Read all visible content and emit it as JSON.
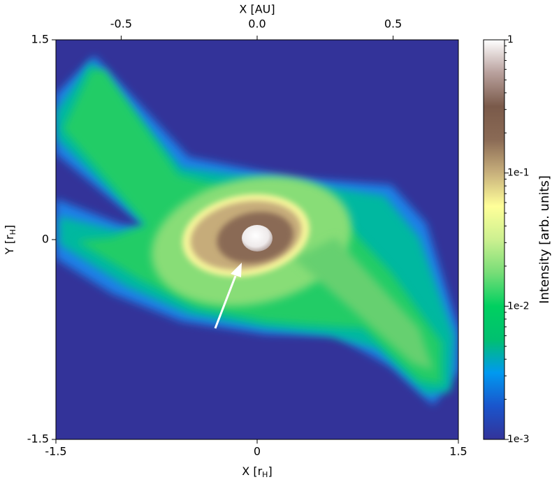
{
  "chart_data": {
    "type": "image",
    "xlabel": [
      "X [r",
      "H",
      "]"
    ],
    "ylabel": [
      "Y [r",
      "H",
      "]"
    ],
    "x2label": "X [AU]",
    "xlim": [
      -1.5,
      1.5
    ],
    "xticks": [
      -1.5,
      0,
      1.5
    ],
    "ylim": [
      -1.5,
      1.5
    ],
    "yticks": [
      -1.5,
      0,
      1.5
    ],
    "x2lim": [
      -0.74,
      0.74
    ],
    "x2ticks": [
      -0.5,
      {
        "value": 0,
        "label": "0.0"
      },
      0.5
    ],
    "colorbar": {
      "label": "Intensity [arb. units]",
      "log": true,
      "clim": [
        0.001,
        1
      ],
      "ticks": [
        {
          "value": 0.001,
          "label": "1e-3"
        },
        {
          "value": 0.01,
          "label": "1e-2"
        },
        {
          "value": 0.1,
          "label": "1e-1"
        },
        1
      ],
      "colormap": [
        "#333399",
        "#1a55cc",
        "#0099f0",
        "#00c070",
        "#00d060",
        "#77dd77",
        "#ccf090",
        "#ffff99",
        "#c8b07c",
        "#8a6a55",
        "#7a5a4a",
        "#b8a09c",
        "#ffffff"
      ]
    }
  }
}
